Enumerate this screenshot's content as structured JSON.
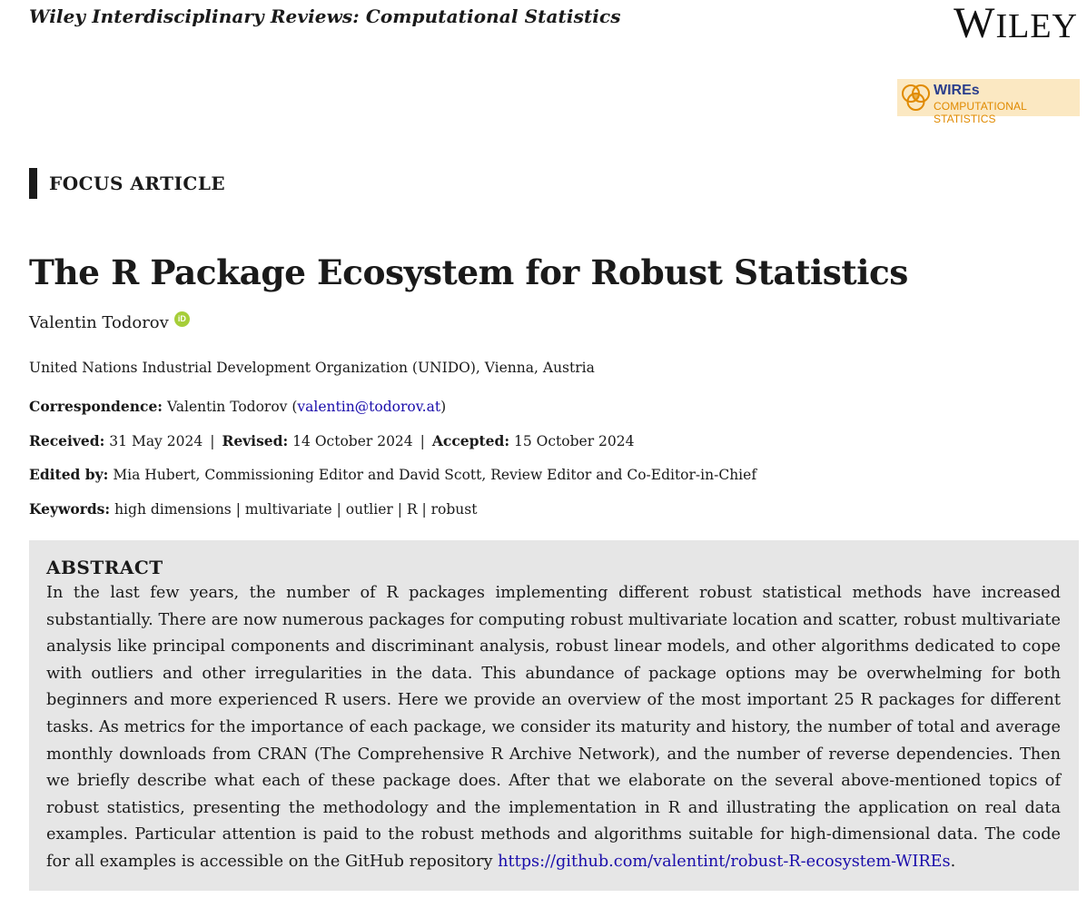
{
  "header": {
    "journal": "Wiley Interdisciplinary Reviews: Computational Statistics",
    "publisher_logo": "Wiley",
    "badge": {
      "title": "WIREs",
      "subtitle": "COMPUTATIONAL STATISTICS",
      "colors": {
        "background": "#fbe8c2",
        "title": "#2a3e8c",
        "subtitle": "#e08a00"
      }
    }
  },
  "article_type": "FOCUS ARTICLE",
  "title": "The R Package Ecosystem for Robust Statistics",
  "author": {
    "name": "Valentin Todorov",
    "orcid_icon": "orcid-icon"
  },
  "affiliation": "United Nations Industrial Development Organization (UNIDO), Vienna, Austria",
  "correspondence": {
    "label": "Correspondence:",
    "name": "Valentin Todorov",
    "email": "valentin@todorov.at"
  },
  "dates": {
    "received_label": "Received:",
    "received": "31 May 2024",
    "revised_label": "Revised:",
    "revised": "14 October 2024",
    "accepted_label": "Accepted:",
    "accepted": "15 October 2024"
  },
  "edited_by": {
    "label": "Edited by:",
    "text": "Mia Hubert, Commissioning Editor and David Scott, Review Editor and Co-Editor-in-Chief"
  },
  "keywords": {
    "label": "Keywords:",
    "text": "high dimensions | multivariate | outlier | R | robust"
  },
  "abstract": {
    "heading": "ABSTRACT",
    "body": "In the last few years, the number of R packages implementing different robust statistical methods have increased substantially. There are now numerous packages for computing robust multivariate location and scatter, robust multivariate analysis like prin­cipal components and discriminant analysis, robust linear models, and other algorithms dedicated to cope with outliers and other irregularities in the data. This abundance of package options may be overwhelming for both beginners and more experienced R users. Here we provide an overview of the most important 25 R packages for different tasks. As metrics for the importance of each package, we consider its maturity and history, the number of total and average monthly downloads from CRAN (The Comprehensive R Archive Network), and the number of reverse dependencies. Then we briefly describe what each of these pack­age does. After that we elaborate on the several above-mentioned topics of robust statistics, presenting the methodology and the implementation in R and illustrating the application on real data examples. Particular attention is paid to the robust methods and algorithms suitable for high-dimensional data. The code for all examples is accessible on the GitHub repository",
    "link_part1": "https://github.",
    "link_part2": "com/valentint/robust-R-ecosystem-WIREs",
    "end": "."
  }
}
